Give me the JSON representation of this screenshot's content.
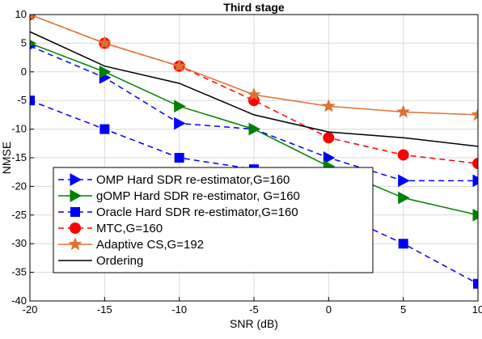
{
  "chart_data": {
    "type": "line",
    "title": "Third stage",
    "xlabel": "SNR (dB)",
    "ylabel": "NMSE",
    "xlim": [
      -20,
      10
    ],
    "ylim": [
      -40,
      10
    ],
    "x_ticks": [
      "-20",
      "-15",
      "-10",
      "-5",
      "0",
      "5",
      "10"
    ],
    "y_ticks": [
      "10",
      "5",
      "0",
      "-5",
      "-10",
      "-15",
      "-20",
      "-25",
      "-30",
      "-35",
      "-40"
    ],
    "grid": true,
    "legend_position": "lower-left",
    "x": [
      -20,
      -15,
      -10,
      -5,
      0,
      5,
      10
    ],
    "series": [
      {
        "name": "OMP  Hard SDR re-estimator,G=160",
        "values": [
          4.5,
          -1,
          -9,
          -10,
          -15,
          -19,
          -19
        ],
        "color": "#0000ff",
        "line_style": "dashed",
        "marker": "triangle-right"
      },
      {
        "name": "gOMP  Hard SDR re-estimator, G=160",
        "values": [
          5,
          0,
          -6,
          -10,
          -16.5,
          -22,
          -25
        ],
        "color": "#008000",
        "line_style": "solid",
        "marker": "triangle-right"
      },
      {
        "name": "Oracle Hard SDR re-estimator,G=160",
        "values": [
          -5,
          -10,
          -15,
          -17,
          -24,
          -30,
          -37
        ],
        "color": "#0000ff",
        "line_style": "dashed",
        "marker": "square"
      },
      {
        "name": "MTC,G=160",
        "values": [
          10,
          5,
          1,
          -5,
          -11.5,
          -14.5,
          -16
        ],
        "color": "#ff0000",
        "line_style": "dashed",
        "marker": "circle"
      },
      {
        "name": "Adaptive CS,G=192",
        "values": [
          10,
          5,
          1,
          -4,
          -6,
          -7,
          -7.5
        ],
        "color": "#e07030",
        "line_style": "solid",
        "marker": "star"
      },
      {
        "name": "Ordering",
        "values": [
          7,
          1,
          -2,
          -7.5,
          -10.5,
          -11.5,
          -13
        ],
        "color": "#000000",
        "line_style": "solid",
        "marker": "none"
      }
    ]
  }
}
